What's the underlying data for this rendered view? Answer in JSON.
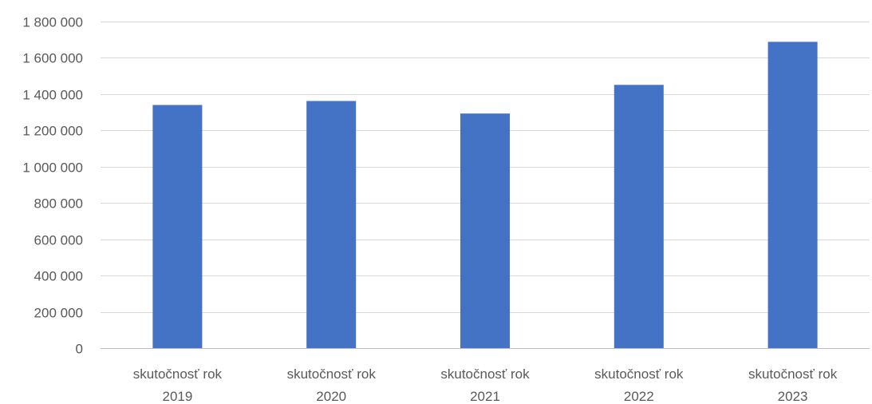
{
  "chart_data": {
    "type": "bar",
    "categories": [
      [
        "skutočnosť rok",
        "2019"
      ],
      [
        "skutočnosť rok",
        "2020"
      ],
      [
        "skutočnosť rok",
        "2021"
      ],
      [
        "skutočnosť rok",
        "2022"
      ],
      [
        "skutočnosť rok",
        "2023"
      ]
    ],
    "values": [
      1340000,
      1362000,
      1293000,
      1451000,
      1688000
    ],
    "ylim": [
      0,
      1800000
    ],
    "yticks": [
      0,
      200000,
      400000,
      600000,
      800000,
      1000000,
      1200000,
      1400000,
      1600000,
      1800000
    ],
    "ytick_labels": [
      "0",
      "200 000",
      "400 000",
      "600 000",
      "800 000",
      "1 000 000",
      "1 200 000",
      "1 400 000",
      "1 600 000",
      "1 800 000"
    ],
    "title": "",
    "xlabel": "",
    "ylabel": "",
    "grid": true,
    "legend": false,
    "bar_color": "#4472c4"
  }
}
